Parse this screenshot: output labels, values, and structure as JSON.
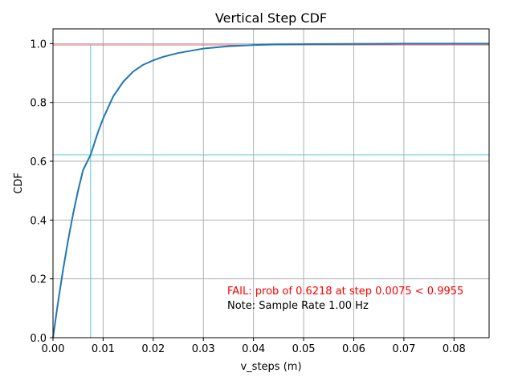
{
  "chart_data": {
    "type": "line",
    "title": "Vertical Step CDF",
    "xlabel": "v_steps (m)",
    "ylabel": "CDF",
    "xlim": [
      0,
      0.087
    ],
    "ylim": [
      0,
      1.05
    ],
    "x_ticks": [
      "0.00",
      "0.01",
      "0.02",
      "0.03",
      "0.04",
      "0.05",
      "0.06",
      "0.07",
      "0.08"
    ],
    "y_ticks": [
      "0.0",
      "0.2",
      "0.4",
      "0.6",
      "0.8",
      "1.0"
    ],
    "grid": true,
    "series": [
      {
        "color": "#1f77b4",
        "x": [
          0,
          0.001,
          0.002,
          0.003,
          0.004,
          0.005,
          0.006,
          0.0075,
          0.009,
          0.01,
          0.012,
          0.014,
          0.016,
          0.018,
          0.02,
          0.022,
          0.025,
          0.03,
          0.035,
          0.04,
          0.045,
          0.05,
          0.06,
          0.07,
          0.08,
          0.087
        ],
        "y": [
          0,
          0.12,
          0.23,
          0.33,
          0.42,
          0.5,
          0.57,
          0.6218,
          0.7,
          0.745,
          0.82,
          0.87,
          0.905,
          0.928,
          0.943,
          0.955,
          0.968,
          0.983,
          0.991,
          0.995,
          0.997,
          0.998,
          0.999,
          1.0,
          1.0,
          1.0
        ]
      }
    ],
    "reference_lines": [
      {
        "orientation": "horizontal",
        "value": 0.9955,
        "color": "#e06666"
      },
      {
        "orientation": "horizontal",
        "value": 0.6218,
        "color": "#5bc8d4"
      },
      {
        "orientation": "vertical",
        "value": 0.0075,
        "color": "#5bc8d4",
        "y_max": 0.9955
      }
    ],
    "annotations": [
      {
        "text": "FAIL: prob of 0.6218 at step 0.0075 < 0.9955",
        "color": "#ff0000"
      },
      {
        "text": "Note: Sample Rate 1.00 Hz",
        "color": "#000000"
      }
    ]
  }
}
